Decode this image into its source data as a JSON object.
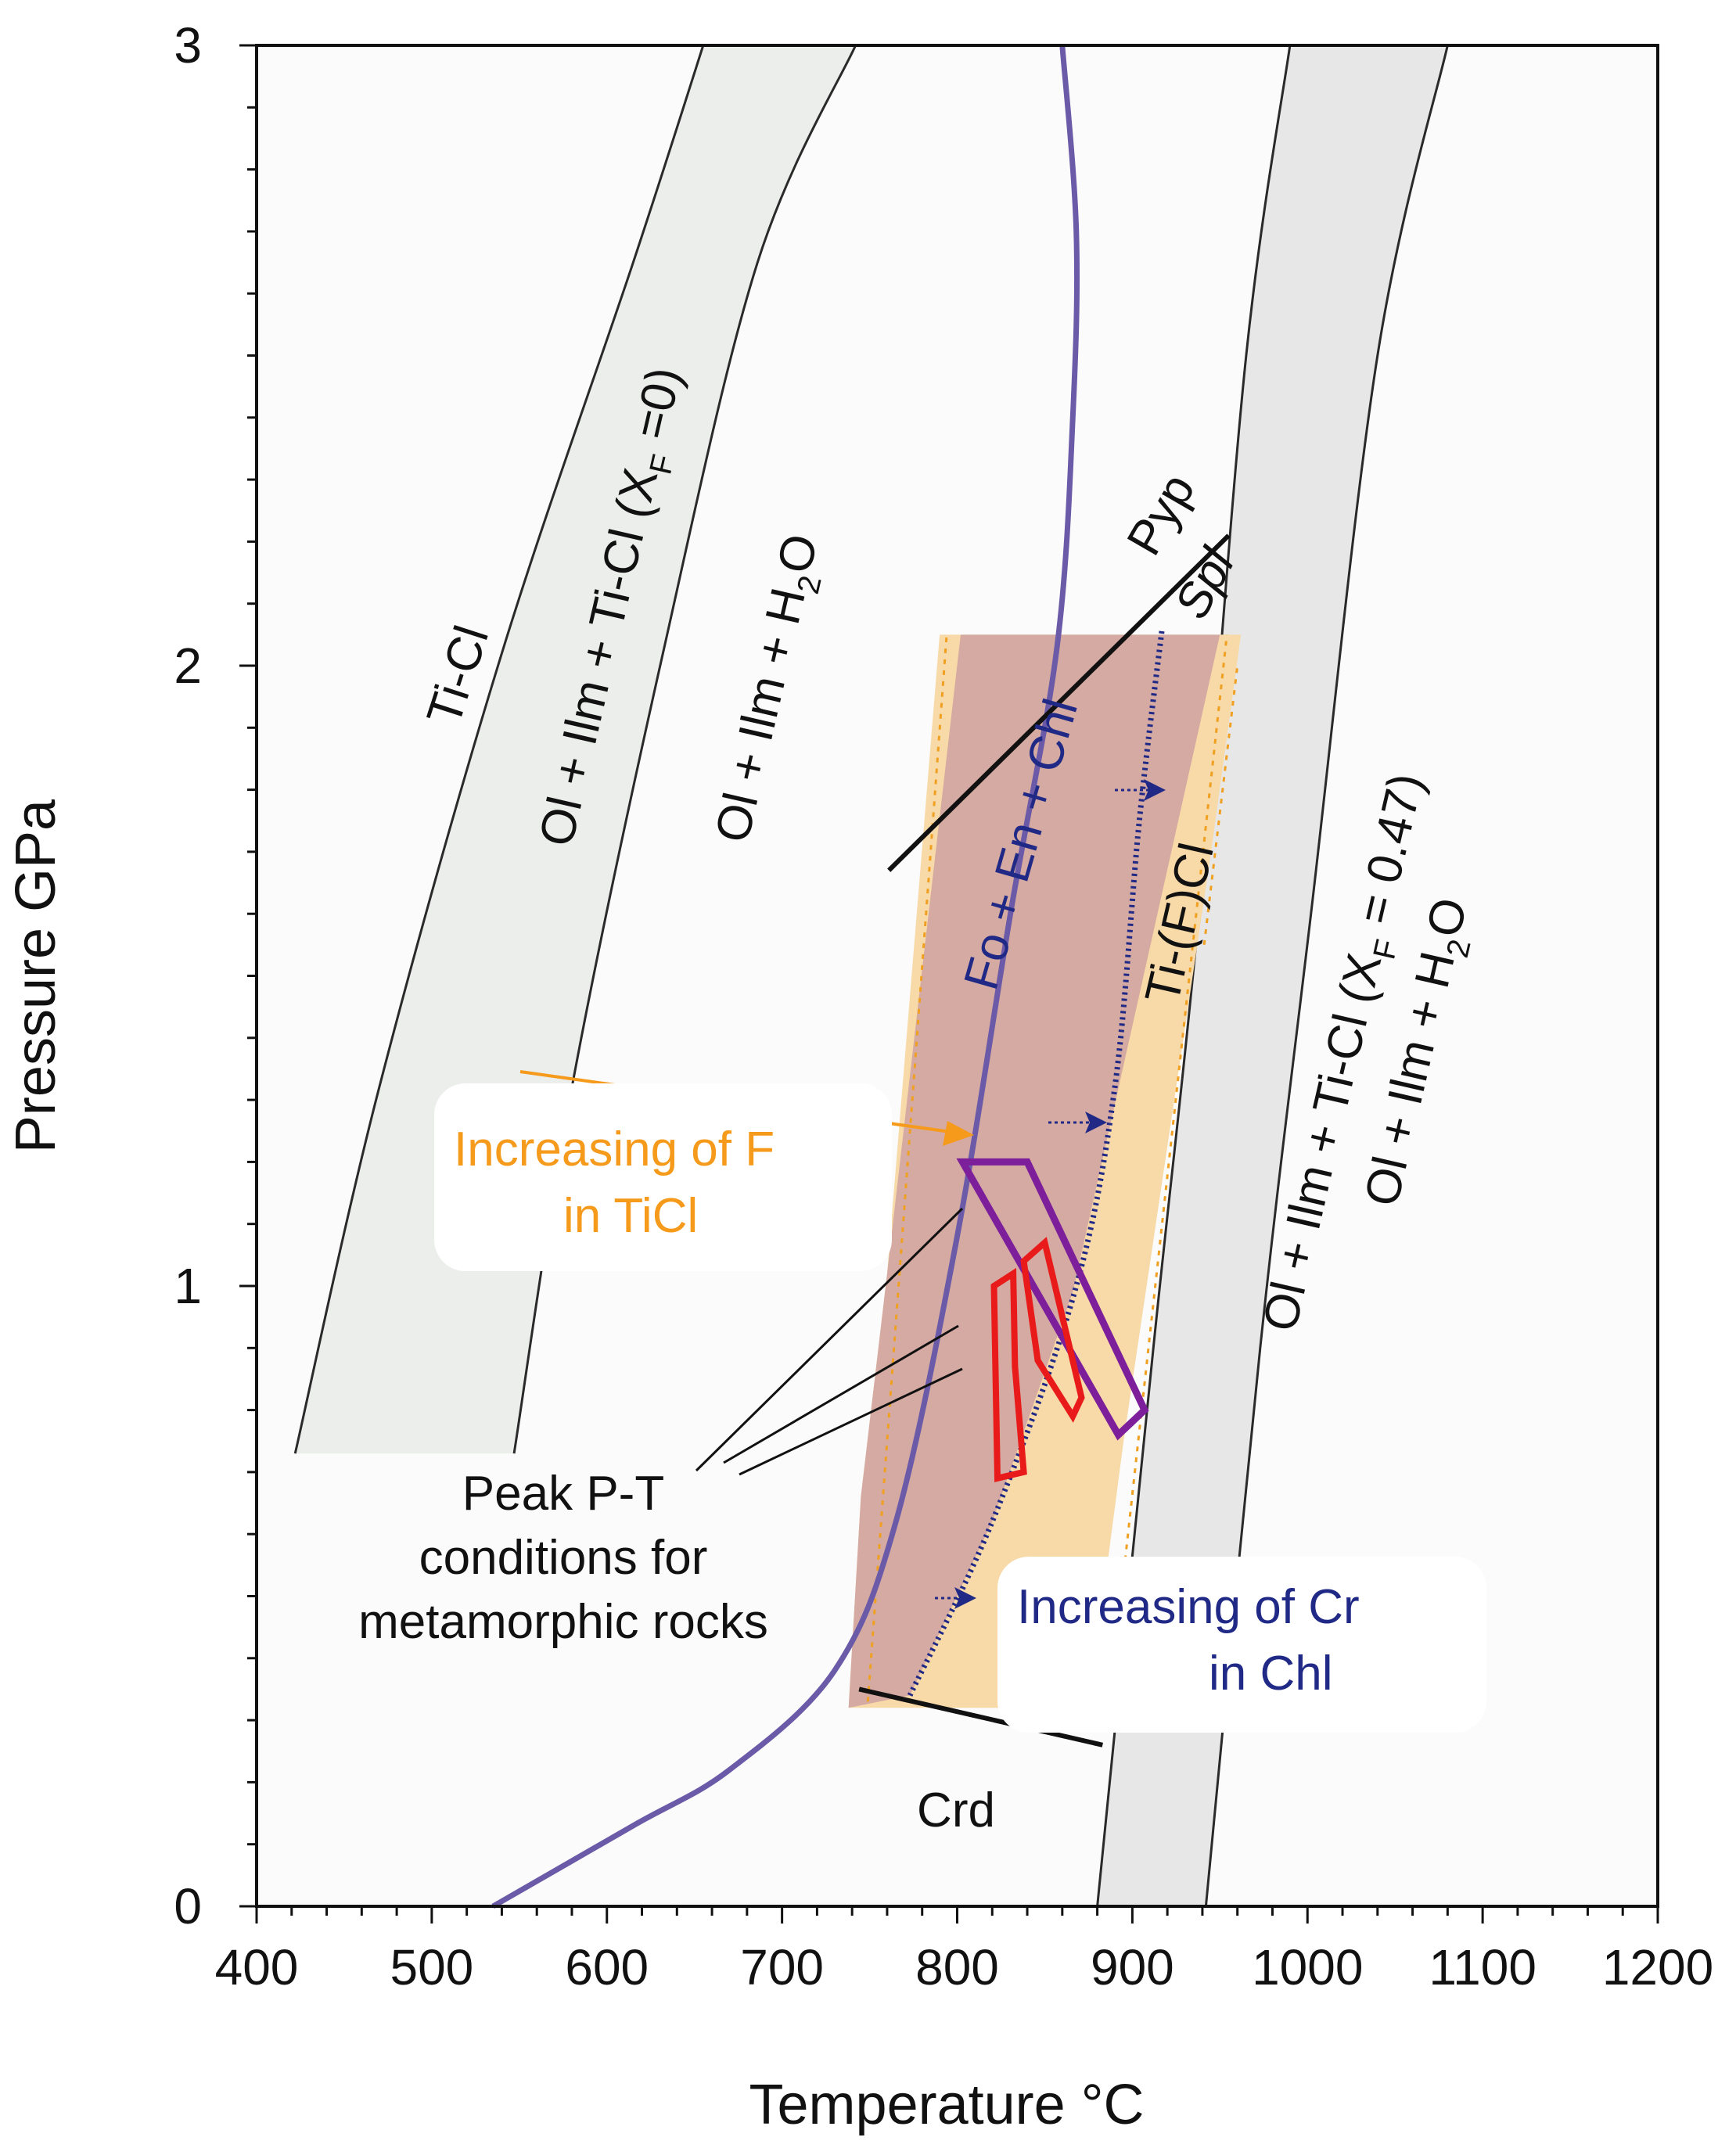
{
  "chart_data": {
    "type": "phase-diagram",
    "xlabel": "Temperature °C",
    "ylabel": "Pressure GPa",
    "xlim": [
      400,
      1200
    ],
    "ylim": [
      0,
      3
    ],
    "x_ticks": [
      "400",
      "500",
      "600",
      "700",
      "800",
      "900",
      "1000",
      "1100",
      "1200"
    ],
    "y_ticks": [
      "0",
      "1",
      "2",
      "3"
    ],
    "boundaries": [
      {
        "name": "Ti-Cl breakdown (X_F = 0)",
        "low_side": [
          [
            422,
            0.73
          ],
          [
            470,
            1.32
          ],
          [
            540,
            2.02
          ],
          [
            615,
            2.65
          ],
          [
            655,
            3.0
          ]
        ],
        "high_side": [
          [
            547,
            0.73
          ],
          [
            580,
            1.32
          ],
          [
            632,
            2.02
          ],
          [
            686,
            2.65
          ],
          [
            742,
            3.0
          ]
        ]
      },
      {
        "name": "Ti-(F)Cl breakdown (X_F = 0.47)",
        "low_side": [
          [
            880,
            0.0
          ],
          [
            912,
            0.9
          ],
          [
            938,
            1.6
          ],
          [
            965,
            2.5
          ],
          [
            990,
            3.0
          ]
        ],
        "high_side": [
          [
            942,
            0.0
          ],
          [
            973,
            0.9
          ],
          [
            1002,
            1.6
          ],
          [
            1040,
            2.5
          ],
          [
            1080,
            3.0
          ]
        ]
      }
    ],
    "series": [
      {
        "name": "Fo + En + Chl / H2O boundary (solid)",
        "color": "#6a5aa8",
        "points": [
          [
            535,
            0.0
          ],
          [
            615,
            0.13
          ],
          [
            670,
            0.22
          ],
          [
            730,
            0.38
          ],
          [
            765,
            0.62
          ],
          [
            800,
            1.08
          ],
          [
            831,
            1.61
          ],
          [
            857,
            2.03
          ],
          [
            866,
            2.4
          ],
          [
            868,
            2.7
          ],
          [
            860,
            3.0
          ]
        ]
      },
      {
        "name": "Cr-bearing chlorite limit (dotted)",
        "color": "#202a86",
        "points": [
          [
            773,
            0.34
          ],
          [
            820,
            0.62
          ],
          [
            867,
            0.99
          ],
          [
            890,
            1.32
          ],
          [
            904,
            1.75
          ],
          [
            917,
            2.06
          ]
        ]
      },
      {
        "name": "Spl / Pyp reaction line",
        "color": "#111111",
        "points": [
          [
            761,
            1.67
          ],
          [
            955,
            2.21
          ]
        ]
      },
      {
        "name": "Crd reaction line",
        "color": "#111111",
        "points": [
          [
            744,
            0.35
          ],
          [
            883,
            0.26
          ]
        ]
      }
    ],
    "fields": [
      {
        "name": "Ti-(F)Cl stability field",
        "color": "#f8d9a8",
        "points": [
          [
            738,
            0.32
          ],
          [
            745,
            0.66
          ],
          [
            760,
            1.02
          ],
          [
            790,
            2.05
          ],
          [
            962,
            2.05
          ],
          [
            945,
            1.7
          ],
          [
            895,
            0.75
          ],
          [
            875,
            0.32
          ]
        ]
      },
      {
        "name": "Fo + En + Chl field",
        "color": "#d5aaa2",
        "points": [
          [
            738,
            0.32
          ],
          [
            745,
            0.66
          ],
          [
            760,
            1.02
          ],
          [
            802,
            2.05
          ],
          [
            950,
            2.05
          ],
          [
            866,
            0.99
          ],
          [
            820,
            0.62
          ],
          [
            773,
            0.34
          ]
        ]
      }
    ],
    "pt_boxes": [
      {
        "name": "peak-box-purple",
        "color": "#7d1e9b",
        "points": [
          [
            803,
            1.2
          ],
          [
            840,
            1.2
          ],
          [
            907,
            0.8
          ],
          [
            892,
            0.76
          ]
        ]
      },
      {
        "name": "peak-box-red-1",
        "color": "#e81a1a",
        "points": [
          [
            821,
            1.0
          ],
          [
            832,
            1.02
          ],
          [
            833,
            0.87
          ],
          [
            838,
            0.7
          ],
          [
            823,
            0.69
          ]
        ]
      },
      {
        "name": "peak-box-red-2",
        "color": "#e81a1a",
        "points": [
          [
            838,
            1.04
          ],
          [
            850,
            1.07
          ],
          [
            871,
            0.82
          ],
          [
            866,
            0.79
          ],
          [
            846,
            0.88
          ]
        ]
      }
    ],
    "annotations": {
      "ti_cl": "Ti-Cl",
      "ol_ilm_ticl_xf0": "Ol + Ilm + Ti-Cl (XF =0)",
      "ol_ilm_h2o_left": "Ol + Ilm + H2O",
      "pyp": "Pyp",
      "spl": "Spl",
      "fo_en_chl": "Fo + En + Chl",
      "ti_f_cl": "Ti-(F)Cl",
      "ol_ilm_ticl_xf047": "Ol + Ilm + Ti-Cl (XF = 0.47)",
      "ol_ilm_h2o_right": "Ol + Ilm + H2O",
      "increasing_f_1": "Increasing of F",
      "increasing_f_2": "in TiCl",
      "increasing_cr_1": "Increasing of Cr",
      "increasing_cr_2": "in Chl",
      "peak_1": "Peak P-T",
      "peak_2": "conditions for",
      "peak_3": "metamorphic rocks",
      "crd": "Crd"
    },
    "colors": {
      "background": "#fafbfa",
      "ticl_band": "#eceeec",
      "tifcl_band": "#e7e7e7",
      "band_edge": "#2a2a2a",
      "orange": "#f59a1a",
      "orange_dotted": "#f0a020",
      "purple_curve": "#6a5aa8",
      "navy": "#202a86",
      "black": "#111111"
    }
  }
}
